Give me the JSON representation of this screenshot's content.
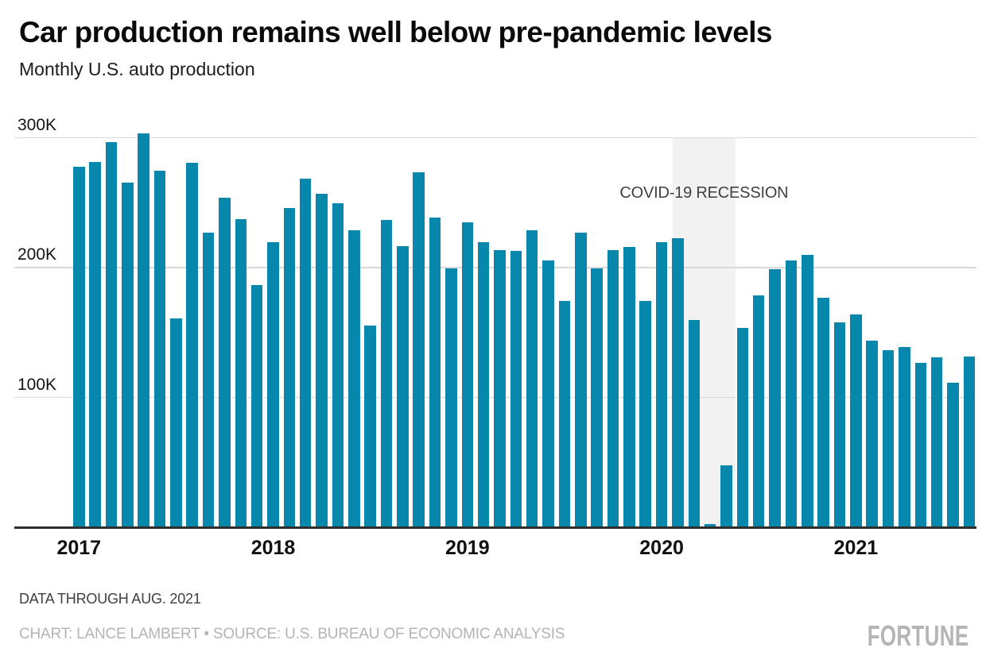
{
  "page": {
    "background": "#ffffff"
  },
  "header": {
    "title": "Car production remains well below pre-pandemic levels",
    "subtitle": "Monthly U.S. auto production"
  },
  "chart_data": {
    "type": "bar",
    "title": "Car production remains well below pre-pandemic levels",
    "subtitle": "Monthly U.S. auto production",
    "unit": "thousands of vehicles",
    "xlabel": "",
    "ylabel": "",
    "ylim": [
      0,
      310
    ],
    "grid": "horizontal",
    "legend_position": "none",
    "bar_color": "#0887ac",
    "grid_color": "#d9d9d9",
    "axis_color": "#2d2d2d",
    "categories": [
      "Jan 2017",
      "Feb 2017",
      "Mar 2017",
      "Apr 2017",
      "May 2017",
      "Jun 2017",
      "Jul 2017",
      "Aug 2017",
      "Sep 2017",
      "Oct 2017",
      "Nov 2017",
      "Dec 2017",
      "Jan 2018",
      "Feb 2018",
      "Mar 2018",
      "Apr 2018",
      "May 2018",
      "Jun 2018",
      "Jul 2018",
      "Aug 2018",
      "Sep 2018",
      "Oct 2018",
      "Nov 2018",
      "Dec 2018",
      "Jan 2019",
      "Feb 2019",
      "Mar 2019",
      "Apr 2019",
      "May 2019",
      "Jun 2019",
      "Jul 2019",
      "Aug 2019",
      "Sep 2019",
      "Oct 2019",
      "Nov 2019",
      "Dec 2019",
      "Jan 2020",
      "Feb 2020",
      "Mar 2020",
      "Apr 2020",
      "May 2020",
      "Jun 2020",
      "Jul 2020",
      "Aug 2020",
      "Sep 2020",
      "Oct 2020",
      "Nov 2020",
      "Dec 2020",
      "Jan 2021",
      "Feb 2021",
      "Mar 2021",
      "Apr 2021",
      "May 2021",
      "Jun 2021",
      "Jul 2021",
      "Aug 2021"
    ],
    "values": [
      277,
      281,
      296,
      265,
      303,
      274,
      160,
      280,
      226,
      253,
      237,
      186,
      219,
      245,
      268,
      256,
      249,
      228,
      155,
      236,
      216,
      273,
      238,
      199,
      234,
      219,
      213,
      212,
      228,
      205,
      174,
      226,
      199,
      213,
      215,
      174,
      219,
      222,
      159,
      2,
      47,
      153,
      178,
      198,
      205,
      209,
      176,
      157,
      163,
      143,
      136,
      138,
      126,
      130,
      111,
      131
    ],
    "yticks": [
      {
        "value": 300,
        "label": "300K"
      },
      {
        "value": 200,
        "label": "200K"
      },
      {
        "value": 100,
        "label": "100K"
      }
    ],
    "xticks": [
      {
        "category": "Jan 2017",
        "label": "2017"
      },
      {
        "category": "Jan 2018",
        "label": "2018"
      },
      {
        "category": "Jan 2019",
        "label": "2019"
      },
      {
        "category": "Jan 2020",
        "label": "2020"
      },
      {
        "category": "Jan 2021",
        "label": "2021"
      }
    ],
    "annotation": {
      "text": "COVID-19 RECESSION",
      "color": "#404040"
    },
    "recession_band": {
      "start_category": "Feb 2020",
      "end_category": "May 2020",
      "color": "#f2f2f2"
    }
  },
  "footer": {
    "note": "DATA THROUGH AUG. 2021",
    "credit": "CHART: LANCE LAMBERT • SOURCE: U.S. BUREAU OF ECONOMIC ANALYSIS",
    "brand": "FORTUNE"
  }
}
